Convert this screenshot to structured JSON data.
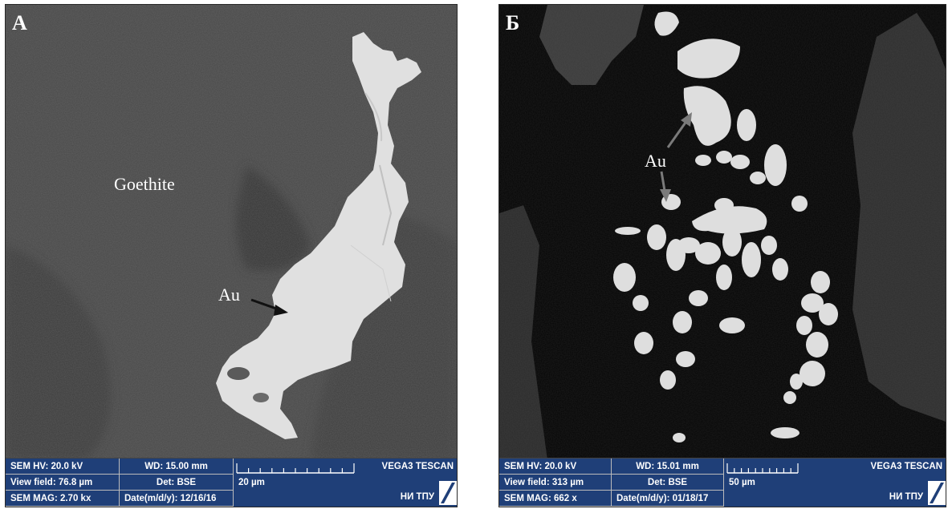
{
  "panels": [
    {
      "letter": "А",
      "labels": {
        "mineral": "Goethite",
        "gold": "Au"
      },
      "databar": {
        "hv": "SEM HV: 20.0 kV",
        "wd": "WD: 15.00 mm",
        "view_field": "View field: 76.8 µm",
        "det": "Det: BSE",
        "mag": "SEM MAG: 2.70 kx",
        "date": "Date(m/d/y): 12/16/16",
        "scale": "20 µm",
        "brand": "VEGA3 TESCAN",
        "org": "НИ ТПУ"
      }
    },
    {
      "letter": "Б",
      "labels": {
        "gold": "Au"
      },
      "databar": {
        "hv": "SEM HV: 20.0 kV",
        "wd": "WD: 15.01 mm",
        "view_field": "View field: 313 µm",
        "det": "Det: BSE",
        "mag": "SEM MAG: 662 x",
        "date": "Date(m/d/y): 01/18/17",
        "scale": "50 µm",
        "brand": "VEGA3 TESCAN",
        "org": "НИ ТПУ"
      }
    }
  ],
  "colors": {
    "goethite_matrix": "#474747",
    "gold_grain": "#e2e2e2",
    "background_b": "#050505",
    "databar_blue": "#1f3f78"
  }
}
